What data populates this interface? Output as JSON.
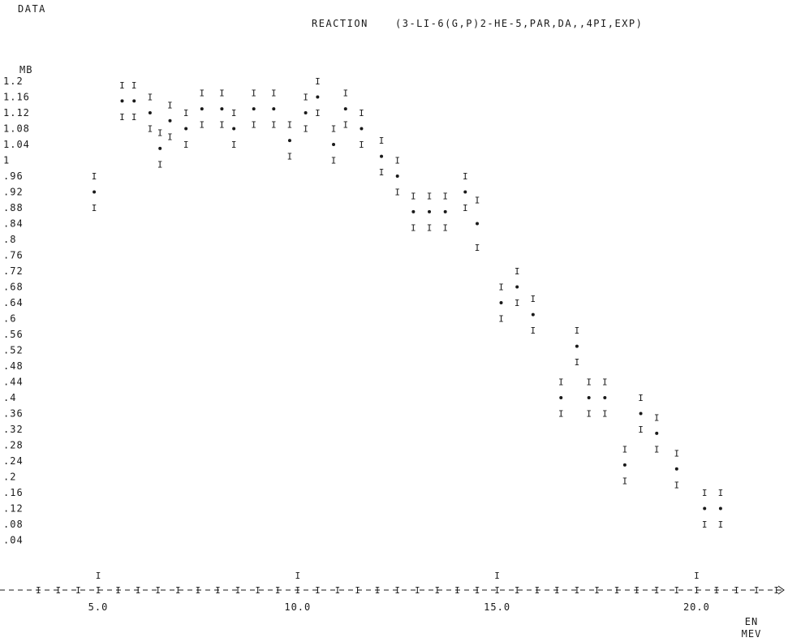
{
  "header": {
    "left": "DATA",
    "reaction_label": "REACTION",
    "reaction": "(3-LI-6(G,P)2-HE-5,PAR,DA,,4PI,EXP)"
  },
  "chart_data": {
    "type": "scatter",
    "title": "",
    "ylabel": "MB",
    "xlabel": "EN",
    "xunit": "MEV",
    "xlim": [
      3.0,
      23.0
    ],
    "ylim": [
      0.02,
      1.2
    ],
    "x_ticks": [
      "5.0",
      "10.0",
      "15.0",
      "20.0"
    ],
    "x_tick_values": [
      5.0,
      10.0,
      15.0,
      20.0
    ],
    "y_ticks": [
      "1.2",
      "1.16",
      "1.12",
      "1.08",
      "1.04",
      "1",
      ".96",
      ".92",
      ".88",
      ".84",
      ".8",
      ".76",
      ".72",
      ".68",
      ".64",
      ".6",
      ".56",
      ".52",
      ".48",
      ".44",
      ".4",
      ".36",
      ".32",
      ".28",
      ".24",
      ".2",
      ".16",
      ".12",
      ".08",
      ".04"
    ],
    "y_tick_values": [
      1.2,
      1.16,
      1.12,
      1.08,
      1.04,
      1.0,
      0.96,
      0.92,
      0.88,
      0.84,
      0.8,
      0.76,
      0.72,
      0.68,
      0.64,
      0.6,
      0.56,
      0.52,
      0.48,
      0.44,
      0.4,
      0.36,
      0.32,
      0.28,
      0.24,
      0.2,
      0.16,
      0.12,
      0.08,
      0.04
    ],
    "x_axis_marks": [
      3.5,
      4.0,
      4.5,
      5.0,
      5.5,
      6.0,
      6.5,
      7.0,
      7.5,
      8.0,
      8.5,
      9.0,
      9.5,
      10.0,
      10.5,
      11.0,
      11.5,
      12.0,
      12.5,
      13.0,
      13.5,
      14.0,
      14.5,
      15.0,
      15.5,
      16.0,
      16.5,
      17.0,
      17.5,
      18.0,
      18.5,
      19.0,
      19.5,
      20.0,
      20.5,
      21.0,
      21.5,
      22.0
    ],
    "series": [
      {
        "points": [
          {
            "x": 4.9,
            "y": 0.92,
            "err": 0.04
          },
          {
            "x": 5.6,
            "y": 1.15,
            "err": 0.04
          },
          {
            "x": 5.9,
            "y": 1.15,
            "err": 0.04
          },
          {
            "x": 6.3,
            "y": 1.12,
            "err": 0.04
          },
          {
            "x": 6.55,
            "y": 1.03,
            "err": 0.04
          },
          {
            "x": 6.8,
            "y": 1.1,
            "err": 0.04
          },
          {
            "x": 7.2,
            "y": 1.08,
            "err": 0.04
          },
          {
            "x": 7.6,
            "y": 1.13,
            "err": 0.04
          },
          {
            "x": 8.1,
            "y": 1.13,
            "err": 0.04
          },
          {
            "x": 8.4,
            "y": 1.08,
            "err": 0.04
          },
          {
            "x": 8.9,
            "y": 1.13,
            "err": 0.04
          },
          {
            "x": 9.4,
            "y": 1.13,
            "err": 0.04
          },
          {
            "x": 9.8,
            "y": 1.05,
            "err": 0.04
          },
          {
            "x": 10.2,
            "y": 1.12,
            "err": 0.04
          },
          {
            "x": 10.5,
            "y": 1.16,
            "err": 0.04
          },
          {
            "x": 10.9,
            "y": 1.04,
            "err": 0.04
          },
          {
            "x": 11.2,
            "y": 1.13,
            "err": 0.04
          },
          {
            "x": 11.6,
            "y": 1.08,
            "err": 0.04
          },
          {
            "x": 12.1,
            "y": 1.01,
            "err": 0.04
          },
          {
            "x": 12.5,
            "y": 0.96,
            "err": 0.04
          },
          {
            "x": 12.9,
            "y": 0.87,
            "err": 0.04
          },
          {
            "x": 13.3,
            "y": 0.87,
            "err": 0.04
          },
          {
            "x": 13.7,
            "y": 0.87,
            "err": 0.04
          },
          {
            "x": 14.2,
            "y": 0.92,
            "err": 0.04
          },
          {
            "x": 14.5,
            "y": 0.84,
            "err": 0.06
          },
          {
            "x": 15.1,
            "y": 0.64,
            "err": 0.04
          },
          {
            "x": 15.5,
            "y": 0.68,
            "err": 0.04
          },
          {
            "x": 15.9,
            "y": 0.61,
            "err": 0.04
          },
          {
            "x": 16.6,
            "y": 0.4,
            "err": 0.04
          },
          {
            "x": 17.0,
            "y": 0.53,
            "err": 0.04
          },
          {
            "x": 17.3,
            "y": 0.4,
            "err": 0.04
          },
          {
            "x": 17.7,
            "y": 0.4,
            "err": 0.04
          },
          {
            "x": 18.2,
            "y": 0.23,
            "err": 0.04
          },
          {
            "x": 18.6,
            "y": 0.36,
            "err": 0.04
          },
          {
            "x": 19.0,
            "y": 0.31,
            "err": 0.04
          },
          {
            "x": 19.5,
            "y": 0.22,
            "err": 0.04
          },
          {
            "x": 20.2,
            "y": 0.12,
            "err": 0.04
          },
          {
            "x": 20.6,
            "y": 0.12,
            "err": 0.04
          }
        ]
      }
    ],
    "grid": false,
    "legend": "none"
  }
}
